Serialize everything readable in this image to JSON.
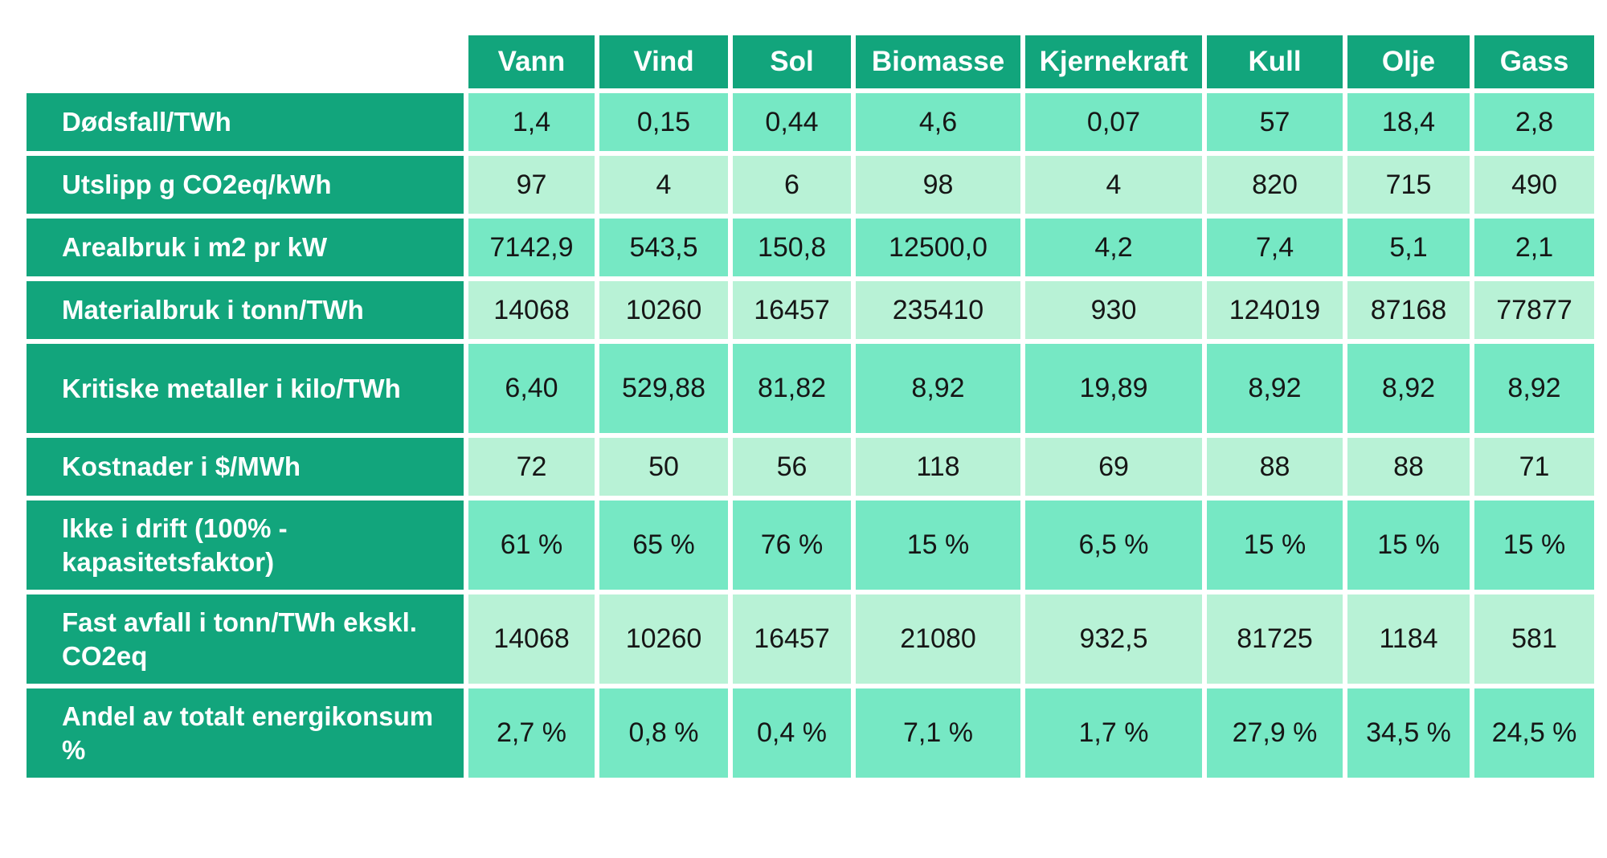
{
  "chart_data": {
    "type": "table",
    "title": "",
    "columns": [
      "Vann",
      "Vind",
      "Sol",
      "Biomasse",
      "Kjernekraft",
      "Kull",
      "Olje",
      "Gass"
    ],
    "rows": [
      {
        "label": "Dødsfall/TWh",
        "shade": "medium",
        "values": [
          "1,4",
          "0,15",
          "0,44",
          "4,6",
          "0,07",
          "57",
          "18,4",
          "2,8"
        ]
      },
      {
        "label": "Utslipp g CO2eq/kWh",
        "shade": "light",
        "values": [
          "97",
          "4",
          "6",
          "98",
          "4",
          "820",
          "715",
          "490"
        ]
      },
      {
        "label": "Arealbruk i m2 pr kW",
        "shade": "medium",
        "values": [
          "7142,9",
          "543,5",
          "150,8",
          "12500,0",
          "4,2",
          "7,4",
          "5,1",
          "2,1"
        ]
      },
      {
        "label": "Materialbruk i tonn/TWh",
        "shade": "light",
        "values": [
          "14068",
          "10260",
          "16457",
          "235410",
          "930",
          "124019",
          "87168",
          "77877"
        ]
      },
      {
        "label": "Kritiske metaller i kilo/TWh",
        "shade": "medium",
        "values": [
          "6,40",
          "529,88",
          "81,82",
          "8,92",
          "19,89",
          "8,92",
          "8,92",
          "8,92"
        ]
      },
      {
        "label": "Kostnader i $/MWh",
        "shade": "light",
        "values": [
          "72",
          "50",
          "56",
          "118",
          "69",
          "88",
          "88",
          "71"
        ]
      },
      {
        "label": "Ikke i drift (100% - kapasitetsfaktor)",
        "shade": "medium",
        "values": [
          "61 %",
          "65 %",
          "76 %",
          "15 %",
          "6,5 %",
          "15 %",
          "15 %",
          "15 %"
        ]
      },
      {
        "label": "Fast avfall i tonn/TWh ekskl. CO2eq",
        "shade": "light",
        "values": [
          "14068",
          "10260",
          "16457",
          "21080",
          "932,5",
          "81725",
          "1184",
          "581"
        ]
      },
      {
        "label": "Andel av totalt energikonsum %",
        "shade": "medium",
        "values": [
          "2,7 %",
          "0,8 %",
          "0,4 %",
          "7,1 %",
          "1,7 %",
          "27,9 %",
          "34,5 %",
          "24,5 %"
        ]
      }
    ],
    "layout": {
      "header_position": "top",
      "row_labels_position": "left",
      "grid": "white-gaps"
    }
  },
  "colors": {
    "header_green": "#12A57C",
    "row_medium_green": "#76E8C4",
    "row_light_green": "#B8F2D6",
    "header_text": "#ffffff",
    "value_text": "#161616",
    "background": "#ffffff"
  }
}
